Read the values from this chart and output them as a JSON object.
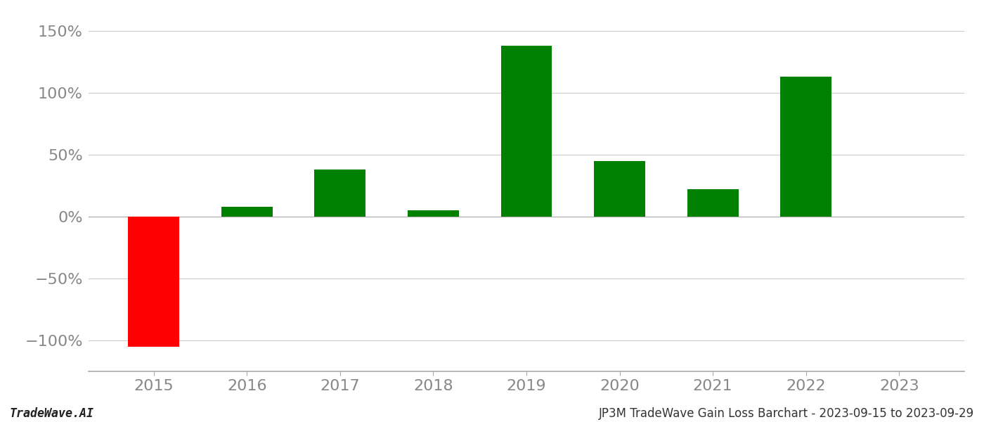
{
  "years": [
    2015,
    2016,
    2017,
    2018,
    2019,
    2020,
    2021,
    2022,
    2023
  ],
  "values": [
    -105,
    8,
    38,
    5,
    138,
    45,
    22,
    113,
    0
  ],
  "colors": [
    "#ff0000",
    "#008000",
    "#008000",
    "#008000",
    "#008000",
    "#008000",
    "#008000",
    "#008000",
    "#008000"
  ],
  "ylim": [
    -125,
    165
  ],
  "yticks": [
    -100,
    -50,
    0,
    50,
    100,
    150
  ],
  "ytick_labels": [
    "−100%",
    "−50%",
    "0%",
    "50%",
    "100%",
    "150%"
  ],
  "footer_left": "TradeWave.AI",
  "footer_right": "JP3M TradeWave Gain Loss Barchart - 2023-09-15 to 2023-09-29",
  "bar_width": 0.55,
  "background_color": "#ffffff",
  "grid_color": "#cccccc",
  "axis_label_color": "#888888",
  "footer_fontsize": 12,
  "tick_fontsize": 16
}
